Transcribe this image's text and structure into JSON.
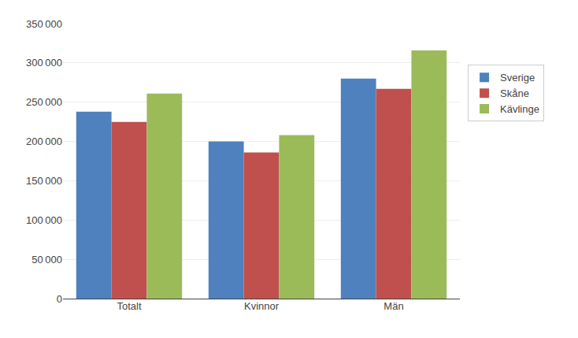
{
  "chart_data": {
    "type": "bar",
    "categories": [
      "Totalt",
      "Kvinnor",
      "Män"
    ],
    "series": [
      {
        "name": "Sverige",
        "color": "#4E81BD",
        "values": [
          238000,
          200000,
          280000
        ]
      },
      {
        "name": "Skåne",
        "color": "#C0504D",
        "values": [
          225000,
          186000,
          267000
        ]
      },
      {
        "name": "Kävlinge",
        "color": "#9BBB59",
        "values": [
          261000,
          208000,
          316000
        ]
      }
    ],
    "ylim": [
      0,
      350000
    ],
    "yticks": [
      0,
      {
        "value": 50000,
        "label": "50 000"
      },
      {
        "value": 100000,
        "label": "100 000"
      },
      {
        "value": 150000,
        "label": "150 000"
      },
      {
        "value": 200000,
        "label": "200 000"
      },
      {
        "value": 250000,
        "label": "250 000"
      },
      {
        "value": 300000,
        "label": "300 000"
      },
      {
        "value": 350000,
        "label": "350 000"
      }
    ],
    "grid": true,
    "legend": "right"
  }
}
